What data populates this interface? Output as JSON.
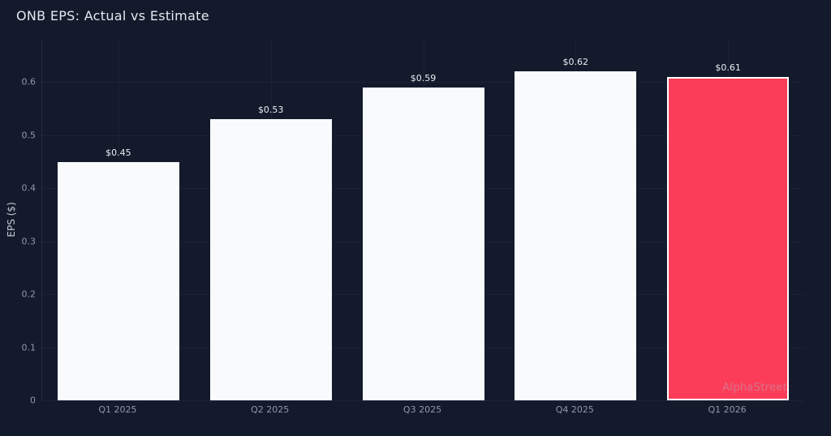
{
  "chart_data": {
    "type": "bar",
    "title": "ONB EPS: Actual vs Estimate",
    "categories": [
      "Q1 2025",
      "Q2 2025",
      "Q3 2025",
      "Q4 2025",
      "Q1 2026"
    ],
    "series": [
      {
        "name": "EPS",
        "values": [
          0.45,
          0.53,
          0.59,
          0.62,
          0.61
        ],
        "labels": [
          "$0.45",
          "$0.53",
          "$0.59",
          "$0.62",
          "$0.61"
        ],
        "kinds": [
          "actual",
          "actual",
          "actual",
          "actual",
          "estimate"
        ]
      }
    ],
    "xlabel": "",
    "ylabel": "EPS ($)",
    "ylim": [
      0,
      0.68
    ],
    "yticks": [
      0,
      0.1,
      0.2,
      0.3,
      0.4,
      0.5,
      0.6
    ],
    "ytick_labels": [
      "0",
      "0.1",
      "0.2",
      "0.3",
      "0.4",
      "0.5",
      "0.6"
    ],
    "grid": true,
    "legend": "none",
    "watermark": "AlphaStreet",
    "colors": {
      "background": "#131a2b",
      "actual_bar": "#f8fafc",
      "estimate_bar": "#fc3d5a",
      "estimate_border": "#ffffff",
      "gridline": "#1b2336",
      "axis_line": "#242e42",
      "tick_text": "#8f98ab",
      "value_text": "#e9edf4",
      "title_text": "#e4e8f0"
    }
  }
}
